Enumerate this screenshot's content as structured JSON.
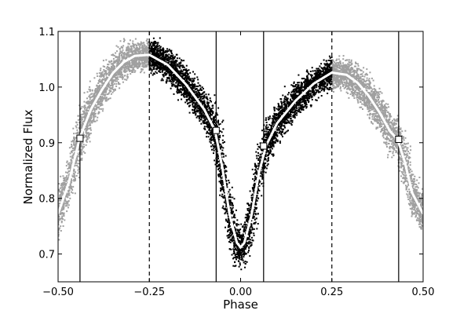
{
  "chart_data": {
    "type": "scatter",
    "title": "",
    "xlabel": "Phase",
    "ylabel": "Normalized Flux",
    "xlim": [
      -0.5,
      0.5
    ],
    "ylim": [
      0.65,
      1.1
    ],
    "xticks": [
      -0.5,
      -0.25,
      0.0,
      0.25,
      0.5
    ],
    "xtick_labels": [
      "−0.50",
      "−0.25",
      "0.00",
      "0.25",
      "0.50"
    ],
    "yticks": [
      0.7,
      0.8,
      0.9,
      1.0,
      1.1
    ],
    "ytick_labels": [
      "0.7",
      "0.8",
      "0.9",
      "1.0",
      "1.1"
    ],
    "grid": false,
    "legend": "none",
    "colors": {
      "observed_black": "#000000",
      "observed_gray": "#a0a0a0",
      "model": "#ffffff",
      "marker_fill": "#ffffff",
      "marker_edge": "#000000"
    },
    "series": [
      {
        "style": "scatter-band-gray",
        "phase_range": [
          -0.5,
          -0.25
        ],
        "x": [
          -0.5,
          -0.47,
          -0.44,
          -0.41,
          -0.38,
          -0.35,
          -0.32,
          -0.29,
          -0.25
        ],
        "y": [
          0.772,
          0.83,
          0.91,
          0.96,
          0.995,
          1.025,
          1.045,
          1.056,
          1.058
        ]
      },
      {
        "style": "scatter-band-black",
        "phase_range": [
          -0.25,
          0.25
        ],
        "x": [
          -0.25,
          -0.2,
          -0.15,
          -0.1,
          -0.07,
          -0.05,
          -0.03,
          -0.01,
          0.0,
          0.01,
          0.03,
          0.05,
          0.07,
          0.1,
          0.15,
          0.2,
          0.25
        ],
        "y": [
          1.058,
          1.04,
          1.005,
          0.96,
          0.922,
          0.855,
          0.77,
          0.72,
          0.712,
          0.72,
          0.77,
          0.845,
          0.895,
          0.935,
          0.975,
          1.006,
          1.026
        ]
      },
      {
        "style": "scatter-band-gray",
        "phase_range": [
          0.25,
          0.5
        ],
        "x": [
          0.25,
          0.29,
          0.32,
          0.35,
          0.38,
          0.41,
          0.43,
          0.45,
          0.47,
          0.5
        ],
        "y": [
          1.026,
          1.022,
          1.008,
          0.985,
          0.955,
          0.92,
          0.906,
          0.865,
          0.81,
          0.772
        ]
      }
    ],
    "model_curve": {
      "x": [
        -0.5,
        -0.47,
        -0.44,
        -0.41,
        -0.38,
        -0.35,
        -0.32,
        -0.29,
        -0.25,
        -0.2,
        -0.15,
        -0.1,
        -0.07,
        -0.05,
        -0.03,
        -0.01,
        0.0,
        0.01,
        0.03,
        0.05,
        0.07,
        0.1,
        0.15,
        0.2,
        0.25,
        0.29,
        0.32,
        0.35,
        0.38,
        0.41,
        0.43,
        0.45,
        0.47,
        0.5
      ],
      "y": [
        0.772,
        0.83,
        0.91,
        0.96,
        0.995,
        1.025,
        1.045,
        1.056,
        1.058,
        1.04,
        1.005,
        0.96,
        0.922,
        0.855,
        0.77,
        0.72,
        0.712,
        0.72,
        0.77,
        0.845,
        0.895,
        0.935,
        0.975,
        1.006,
        1.026,
        1.022,
        1.008,
        0.985,
        0.955,
        0.92,
        0.906,
        0.865,
        0.81,
        0.772
      ]
    },
    "vertical_lines": {
      "solid": [
        -0.44,
        -0.067,
        0.063,
        0.433
      ],
      "dashed": [
        -0.25,
        0.25
      ]
    },
    "markers": [
      {
        "x": -0.44,
        "y": 0.908
      },
      {
        "x": -0.067,
        "y": 0.922
      },
      {
        "x": 0.063,
        "y": 0.894
      },
      {
        "x": 0.433,
        "y": 0.906
      }
    ]
  }
}
